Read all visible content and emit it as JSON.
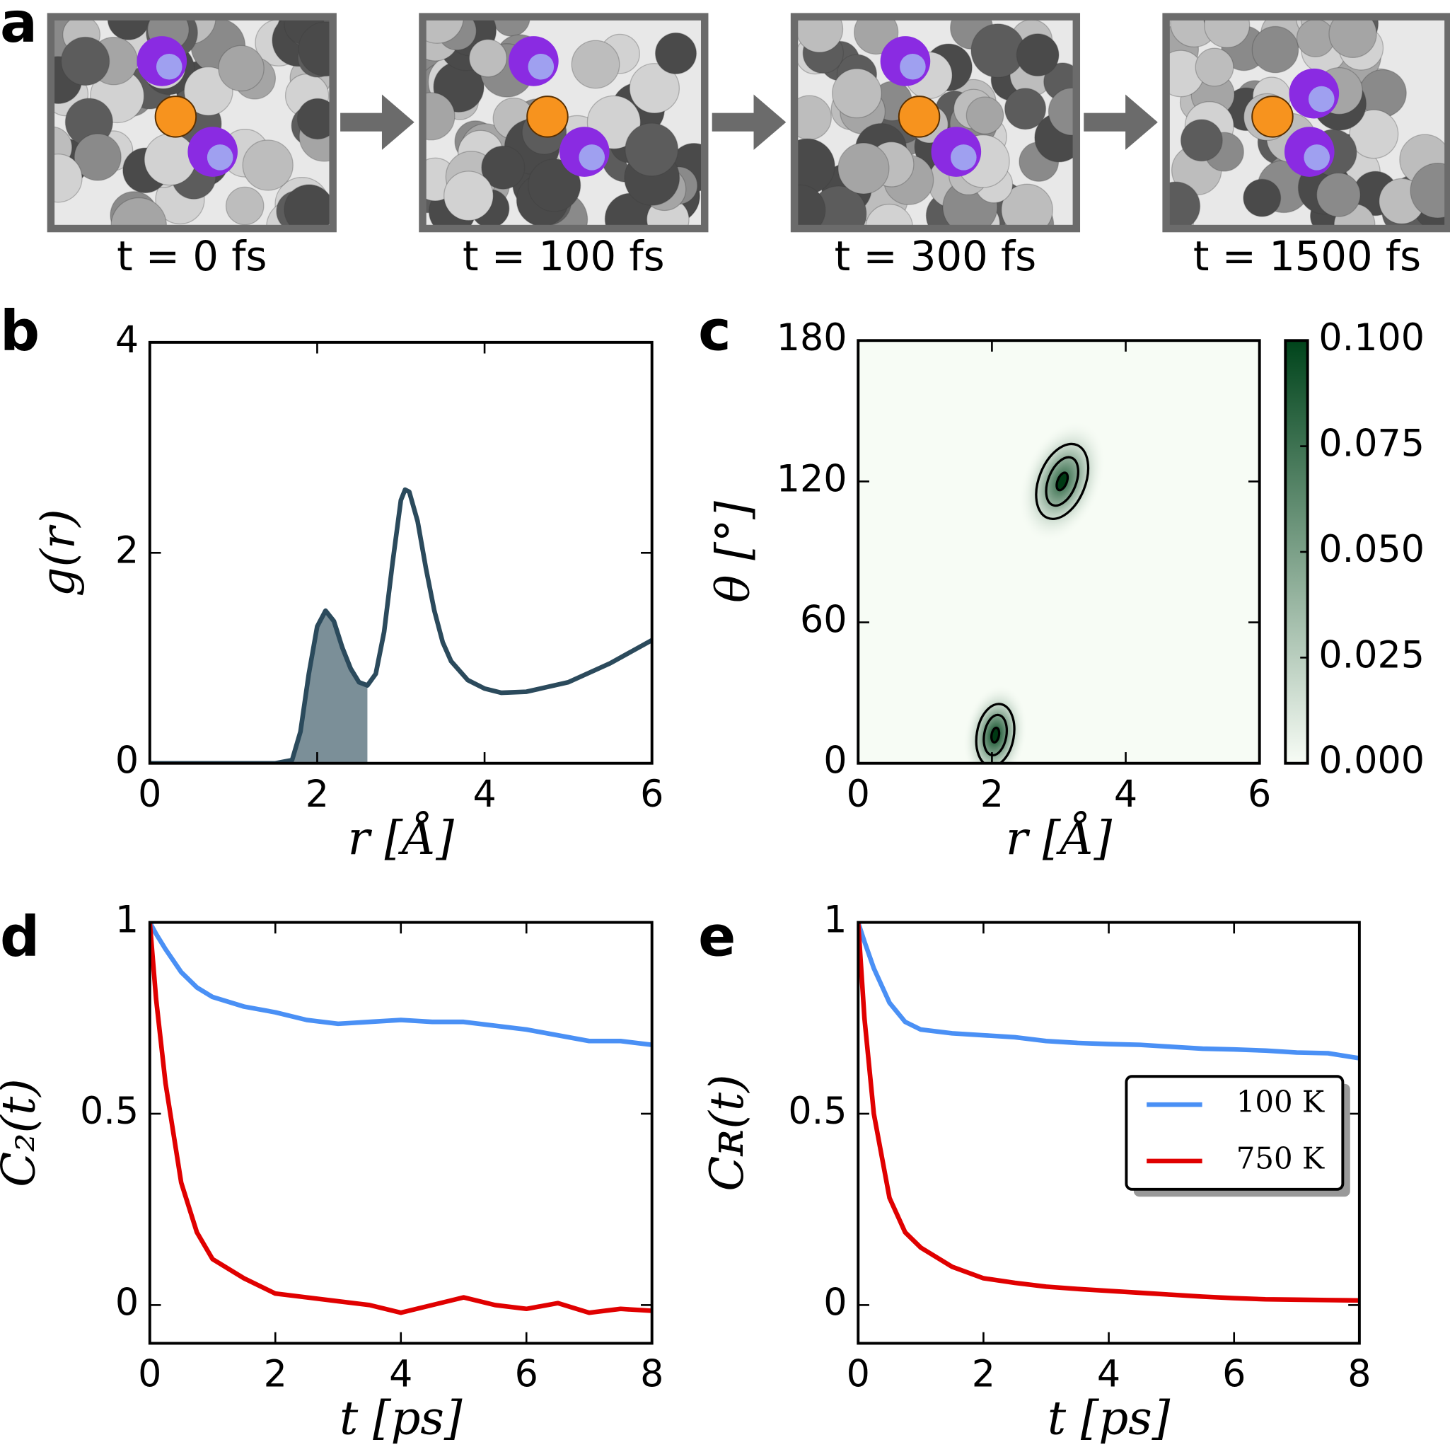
{
  "panel_labels": [
    "a",
    "b",
    "c",
    "d",
    "e"
  ],
  "snapshots": {
    "captions": [
      "t = 0 fs",
      "t = 100 fs",
      "t = 300 fs",
      "t = 1500 fs"
    ]
  },
  "chart_data": [
    {
      "type": "line",
      "xlabel": "r [Å]",
      "ylabel": "g(r)",
      "x": [
        0,
        0.5,
        1,
        1.5,
        1.7,
        1.8,
        1.9,
        2.0,
        2.1,
        2.2,
        2.3,
        2.4,
        2.5,
        2.6,
        2.7,
        2.8,
        2.9,
        3.0,
        3.05,
        3.1,
        3.2,
        3.3,
        3.4,
        3.5,
        3.6,
        3.8,
        4.0,
        4.2,
        4.5,
        5.0,
        5.5,
        6.0
      ],
      "series": [
        {
          "color": "#2b4a5c",
          "values": [
            0,
            0,
            0,
            0,
            0.03,
            0.3,
            0.85,
            1.3,
            1.45,
            1.35,
            1.1,
            0.9,
            0.77,
            0.74,
            0.85,
            1.25,
            1.9,
            2.5,
            2.6,
            2.58,
            2.3,
            1.85,
            1.45,
            1.15,
            0.97,
            0.79,
            0.71,
            0.67,
            0.68,
            0.77,
            0.95,
            1.17
          ]
        }
      ],
      "shade_to": 2.6,
      "shade_color": "#7b8f98",
      "xlim": [
        0,
        6
      ],
      "ylim": [
        0,
        4
      ],
      "xticks": [
        0,
        2,
        4,
        6
      ],
      "yticks": [
        0,
        2,
        4
      ]
    },
    {
      "type": "heatmap",
      "xlabel": "r [Å]",
      "ylabel": "θ [°]",
      "xlim": [
        0,
        6
      ],
      "ylim": [
        0,
        180
      ],
      "xticks": [
        0,
        2,
        4,
        6
      ],
      "yticks": [
        0,
        60,
        120,
        180
      ],
      "peaks": [
        {
          "x": 2.05,
          "y": 12,
          "value": 0.1
        },
        {
          "x": 3.05,
          "y": 120,
          "value": 0.085
        }
      ],
      "clim": [
        0,
        0.1
      ],
      "colormap": [
        "#f7fcf5",
        "#00441b"
      ],
      "cticks": [
        {
          "value": 0,
          "label": "0.000"
        },
        {
          "value": 0.025,
          "label": "0.025"
        },
        {
          "value": 0.05,
          "label": "0.050"
        },
        {
          "value": 0.075,
          "label": "0.075"
        },
        {
          "value": 0.1,
          "label": "0.100"
        }
      ]
    },
    {
      "type": "line",
      "xlabel": "t [ps]",
      "ylabel": "C₂(t)",
      "x": [
        0,
        0.1,
        0.25,
        0.5,
        0.75,
        1,
        1.5,
        2,
        2.5,
        3,
        3.5,
        4,
        4.5,
        5,
        5.5,
        6,
        6.5,
        7,
        7.5,
        8
      ],
      "series": [
        {
          "color": "#4a90f5",
          "values": [
            1,
            0.97,
            0.93,
            0.87,
            0.83,
            0.805,
            0.78,
            0.765,
            0.745,
            0.735,
            0.74,
            0.745,
            0.74,
            0.74,
            0.73,
            0.72,
            0.705,
            0.69,
            0.69,
            0.68
          ]
        },
        {
          "color": "#e00000",
          "values": [
            1,
            0.8,
            0.58,
            0.32,
            0.19,
            0.12,
            0.07,
            0.03,
            0.02,
            0.01,
            0.0,
            -0.02,
            0.0,
            0.02,
            0.0,
            -0.01,
            0.005,
            -0.02,
            -0.01,
            -0.015
          ]
        }
      ],
      "xlim": [
        0,
        8
      ],
      "ylim": [
        -0.1,
        1
      ],
      "xticks": [
        0,
        2,
        4,
        6,
        8
      ],
      "yticks": [
        0,
        0.5,
        1
      ]
    },
    {
      "type": "line",
      "xlabel": "t [ps]",
      "ylabel": "Cʀ(t)",
      "x": [
        0,
        0.1,
        0.25,
        0.5,
        0.75,
        1,
        1.5,
        2,
        2.5,
        3,
        3.5,
        4,
        4.5,
        5,
        5.5,
        6,
        6.5,
        7,
        7.5,
        8
      ],
      "series": [
        {
          "name": "100 K",
          "color": "#4a90f5",
          "values": [
            1,
            0.95,
            0.88,
            0.79,
            0.74,
            0.72,
            0.71,
            0.705,
            0.7,
            0.69,
            0.685,
            0.682,
            0.68,
            0.675,
            0.67,
            0.668,
            0.665,
            0.66,
            0.658,
            0.645
          ]
        },
        {
          "name": "750 K",
          "color": "#e00000",
          "values": [
            1,
            0.75,
            0.5,
            0.28,
            0.19,
            0.15,
            0.1,
            0.07,
            0.058,
            0.048,
            0.042,
            0.037,
            0.032,
            0.027,
            0.022,
            0.018,
            0.015,
            0.014,
            0.013,
            0.012
          ]
        }
      ],
      "legend": "right",
      "xlim": [
        0,
        8
      ],
      "ylim": [
        -0.1,
        1
      ],
      "xticks": [
        0,
        2,
        4,
        6,
        8
      ],
      "yticks": [
        0,
        0.5,
        1
      ]
    }
  ]
}
